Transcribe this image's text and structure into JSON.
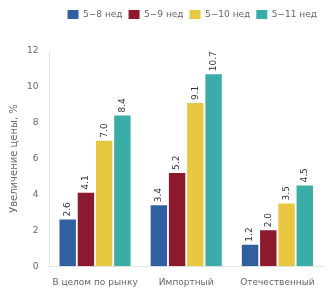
{
  "chart_data": {
    "type": "bar",
    "categories": [
      "В целом по рынку",
      "Импортный",
      "Отечественный"
    ],
    "series": [
      {
        "name": "5−8 нед",
        "color": "#3060A0",
        "values": [
          2.6,
          3.4,
          1.2
        ],
        "value_labels": [
          "2.6",
          "3.4",
          "1.2"
        ]
      },
      {
        "name": "5−9 нед",
        "color": "#8B1A2E",
        "values": [
          4.1,
          5.2,
          2.0
        ],
        "value_labels": [
          "4.1",
          "5.2",
          "2.0"
        ]
      },
      {
        "name": "5−10 нед",
        "color": "#E8C840",
        "values": [
          7.0,
          9.1,
          3.5
        ],
        "value_labels": [
          "7.0",
          "9.1",
          "3.5"
        ]
      },
      {
        "name": "5−11 нед",
        "color": "#3AADA8",
        "values": [
          8.4,
          10.7,
          4.5
        ],
        "value_labels": [
          "8.4",
          "10.7",
          "4.5"
        ]
      }
    ],
    "ylabel": "Увеличение цены, %",
    "ylim": [
      0,
      12
    ],
    "yticks": [
      0,
      2,
      4,
      6,
      8,
      10,
      12
    ],
    "grid": false,
    "legend": "upper right",
    "data_labels": true
  }
}
